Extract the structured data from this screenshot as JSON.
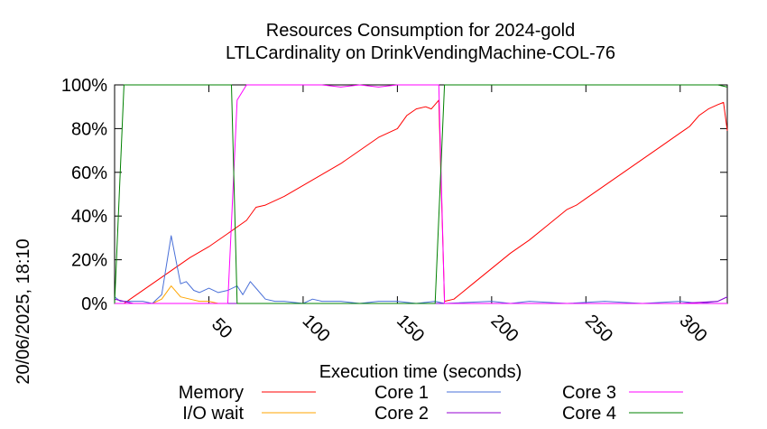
{
  "chart_data": {
    "type": "line",
    "title_line1": "Resources Consumption for 2024-gold",
    "title_line2": "LTLCardinality on DrinkVendingMachine-COL-76",
    "xlabel": "Execution time (seconds)",
    "timestamp": "20/06/2025, 18:10",
    "xlim": [
      0,
      325
    ],
    "ylim": [
      0,
      100
    ],
    "x_ticks": [
      "50",
      "100",
      "150",
      "200",
      "250",
      "300"
    ],
    "y_ticks": [
      "0%",
      "20%",
      "40%",
      "60%",
      "80%",
      "100%"
    ],
    "grid": false,
    "legend_position": "bottom",
    "series": [
      {
        "name": "Memory",
        "color": "#ff0000",
        "points": [
          [
            5,
            0
          ],
          [
            10,
            3
          ],
          [
            20,
            9
          ],
          [
            30,
            15
          ],
          [
            40,
            21
          ],
          [
            50,
            26
          ],
          [
            60,
            32
          ],
          [
            70,
            38
          ],
          [
            75,
            44
          ],
          [
            80,
            45
          ],
          [
            90,
            49
          ],
          [
            100,
            54
          ],
          [
            110,
            59
          ],
          [
            120,
            64
          ],
          [
            130,
            70
          ],
          [
            140,
            76
          ],
          [
            150,
            80
          ],
          [
            155,
            86
          ],
          [
            160,
            89
          ],
          [
            165,
            90
          ],
          [
            168,
            89
          ],
          [
            172,
            93
          ],
          [
            175,
            1
          ],
          [
            180,
            2
          ],
          [
            190,
            9
          ],
          [
            200,
            16
          ],
          [
            210,
            23
          ],
          [
            220,
            29
          ],
          [
            230,
            36
          ],
          [
            240,
            43
          ],
          [
            245,
            45
          ],
          [
            250,
            48
          ],
          [
            260,
            54
          ],
          [
            270,
            60
          ],
          [
            280,
            66
          ],
          [
            290,
            72
          ],
          [
            300,
            78
          ],
          [
            305,
            81
          ],
          [
            310,
            86
          ],
          [
            315,
            89
          ],
          [
            320,
            91
          ],
          [
            323,
            92
          ],
          [
            327,
            79
          ]
        ]
      },
      {
        "name": "I/O wait",
        "color": "#ffa500",
        "points": [
          [
            0,
            0
          ],
          [
            20,
            0
          ],
          [
            25,
            2
          ],
          [
            30,
            8
          ],
          [
            35,
            3
          ],
          [
            40,
            2
          ],
          [
            45,
            1
          ],
          [
            50,
            1
          ],
          [
            55,
            0
          ],
          [
            60,
            0
          ],
          [
            70,
            0
          ],
          [
            80,
            0
          ],
          [
            327,
            0
          ]
        ]
      },
      {
        "name": "Core 1",
        "color": "#4a70d8",
        "points": [
          [
            0,
            3
          ],
          [
            3,
            1
          ],
          [
            10,
            1
          ],
          [
            15,
            1
          ],
          [
            20,
            0
          ],
          [
            25,
            4
          ],
          [
            30,
            31
          ],
          [
            35,
            9
          ],
          [
            38,
            10
          ],
          [
            42,
            6
          ],
          [
            45,
            5
          ],
          [
            50,
            7
          ],
          [
            55,
            5
          ],
          [
            60,
            6
          ],
          [
            65,
            8
          ],
          [
            68,
            4
          ],
          [
            72,
            10
          ],
          [
            76,
            6
          ],
          [
            80,
            2
          ],
          [
            85,
            1
          ],
          [
            90,
            1
          ],
          [
            100,
            0
          ],
          [
            105,
            2
          ],
          [
            110,
            1
          ],
          [
            120,
            1
          ],
          [
            130,
            0
          ],
          [
            140,
            1
          ],
          [
            150,
            1
          ],
          [
            160,
            0
          ],
          [
            170,
            1
          ],
          [
            175,
            0
          ],
          [
            200,
            1
          ],
          [
            210,
            0
          ],
          [
            220,
            1
          ],
          [
            240,
            0
          ],
          [
            260,
            1
          ],
          [
            280,
            0
          ],
          [
            300,
            1
          ],
          [
            310,
            0
          ],
          [
            320,
            1
          ],
          [
            327,
            3
          ]
        ]
      },
      {
        "name": "Core 2",
        "color": "#9400d3",
        "points": [
          [
            0,
            2
          ],
          [
            5,
            1
          ],
          [
            10,
            0
          ],
          [
            50,
            0
          ],
          [
            100,
            0
          ],
          [
            150,
            0
          ],
          [
            200,
            0
          ],
          [
            250,
            0
          ],
          [
            300,
            0
          ],
          [
            320,
            1
          ],
          [
            327,
            3
          ]
        ]
      },
      {
        "name": "Core 3",
        "color": "#ff00ff",
        "points": [
          [
            0,
            0
          ],
          [
            55,
            0
          ],
          [
            60,
            0
          ],
          [
            65,
            93
          ],
          [
            70,
            100
          ],
          [
            100,
            100
          ],
          [
            110,
            100
          ],
          [
            120,
            99
          ],
          [
            130,
            100
          ],
          [
            140,
            99
          ],
          [
            150,
            100
          ],
          [
            160,
            100
          ],
          [
            165,
            100
          ],
          [
            172,
            100
          ],
          [
            175,
            0
          ],
          [
            200,
            0
          ],
          [
            250,
            0
          ],
          [
            300,
            0
          ],
          [
            327,
            0
          ]
        ]
      },
      {
        "name": "Core 4",
        "color": "#008000",
        "points": [
          [
            0,
            0
          ],
          [
            5,
            100
          ],
          [
            10,
            100
          ],
          [
            50,
            100
          ],
          [
            58,
            100
          ],
          [
            62,
            100
          ],
          [
            65,
            0
          ],
          [
            70,
            0
          ],
          [
            100,
            0
          ],
          [
            150,
            0
          ],
          [
            170,
            0
          ],
          [
            175,
            100
          ],
          [
            200,
            100
          ],
          [
            250,
            100
          ],
          [
            300,
            100
          ],
          [
            320,
            100
          ],
          [
            327,
            99
          ]
        ]
      }
    ]
  }
}
